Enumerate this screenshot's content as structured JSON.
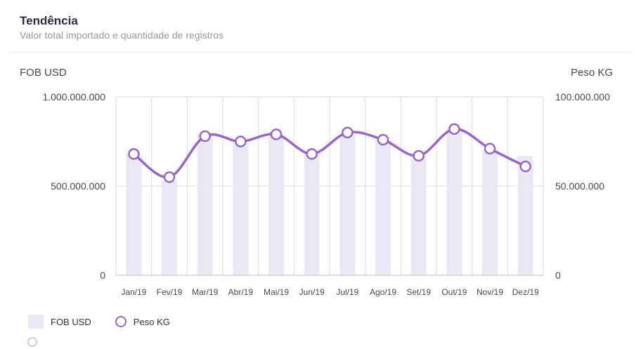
{
  "header": {
    "title": "Tendência",
    "subtitle": "Valor total importado e quantidade de registros"
  },
  "colors": {
    "bar": "#e9e9f6",
    "line": "#9a66c6",
    "grid": "#d9d9d9"
  },
  "chart_data": {
    "type": "bar",
    "title": "Tendência",
    "subtitle": "Valor total importado e quantidade de registros",
    "categories": [
      "Jan/19",
      "Fev/19",
      "Mar/19",
      "Abr/19",
      "Mai/19",
      "Jun/19",
      "Jul/19",
      "Ago/19",
      "Set/19",
      "Out/19",
      "Nov/19",
      "Dez/19"
    ],
    "y_left": {
      "label": "FOB USD",
      "range": [
        0,
        1000000000
      ],
      "tick_labels": [
        "0",
        "500.000.000",
        "1.000.000.000"
      ]
    },
    "y_right": {
      "label": "Peso KG",
      "range": [
        0,
        100000000
      ],
      "tick_labels": [
        "0",
        "50.000.000",
        "100.000.000"
      ]
    },
    "series": [
      {
        "name": "FOB USD",
        "type": "bar",
        "axis": "left",
        "values": [
          680000000,
          530000000,
          790000000,
          740000000,
          790000000,
          680000000,
          790000000,
          760000000,
          670000000,
          820000000,
          700000000,
          670000000
        ]
      },
      {
        "name": "Peso KG",
        "type": "line",
        "axis": "right",
        "values": [
          68000000,
          55000000,
          78000000,
          75000000,
          79000000,
          68000000,
          80000000,
          76000000,
          67000000,
          82000000,
          71000000,
          61000000
        ]
      }
    ],
    "grid": true,
    "legend": "bottom-left"
  },
  "legend": {
    "bar_label": "FOB USD",
    "line_label": "Peso KG"
  }
}
